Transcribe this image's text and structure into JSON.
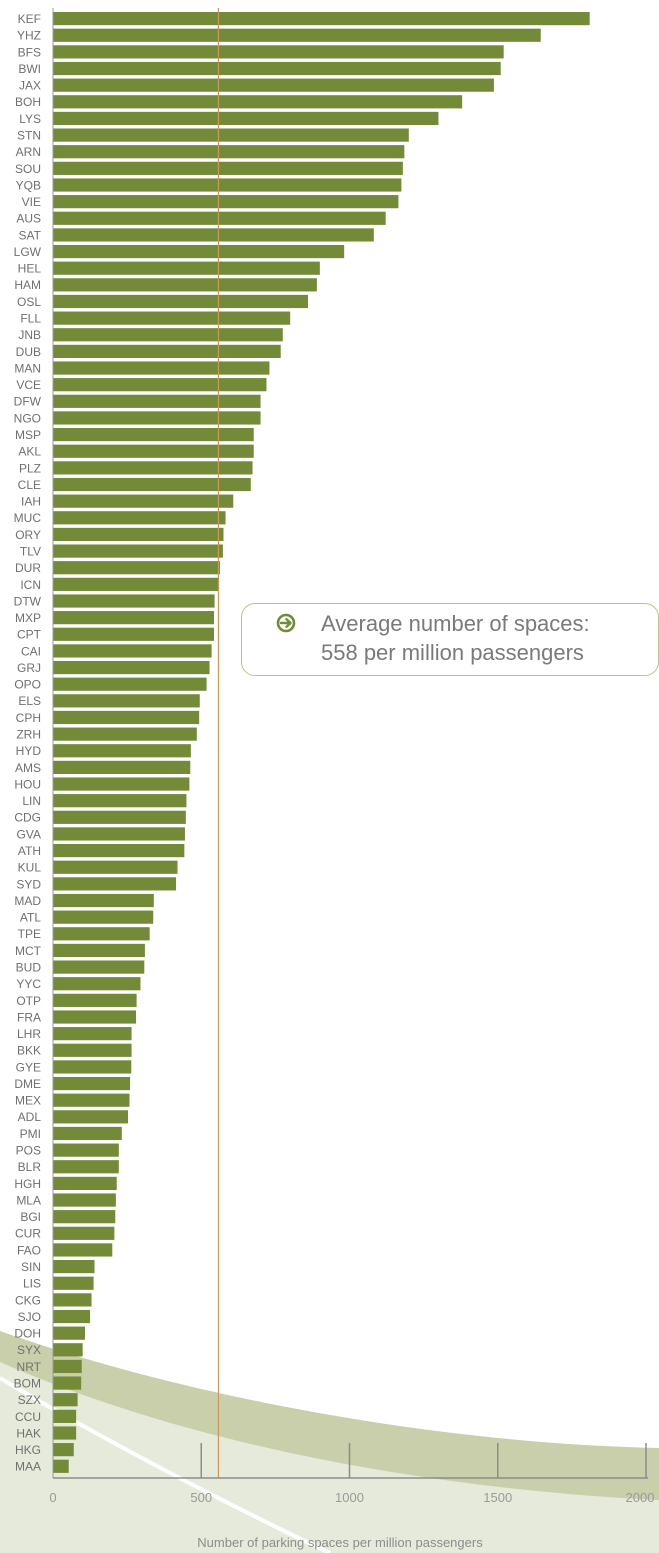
{
  "chart_data": {
    "type": "bar",
    "orientation": "horizontal",
    "xlabel": "Number of parking spaces per million passengers",
    "xlim": [
      0,
      2000
    ],
    "xticks": [
      "0",
      "500",
      "1000",
      "1500",
      "2000"
    ],
    "average": 558,
    "callout": {
      "line1": "Average number of spaces:",
      "line2": "558 per million passengers"
    },
    "colors": {
      "bar": "#738b38",
      "average_line": "#c89a5a",
      "callout_border": "#b8c48a"
    },
    "categories": [
      "KEF",
      "YHZ",
      "BFS",
      "BWI",
      "JAX",
      "BOH",
      "LYS",
      "STN",
      "ARN",
      "SOU",
      "YQB",
      "VIE",
      "AUS",
      "SAT",
      "LGW",
      "HEL",
      "HAM",
      "OSL",
      "FLL",
      "JNB",
      "DUB",
      "MAN",
      "VCE",
      "DFW",
      "NGO",
      "MSP",
      "AKL",
      "PLZ",
      "CLE",
      "IAH",
      "MUC",
      "ORY",
      "TLV",
      "DUR",
      "ICN",
      "DTW",
      "MXP",
      "CPT",
      "CAI",
      "GRJ",
      "OPO",
      "ELS",
      "CPH",
      "ZRH",
      "HYD",
      "AMS",
      "HOU",
      "LIN",
      "CDG",
      "GVA",
      "ATH",
      "KUL",
      "SYD",
      "MAD",
      "ATL",
      "TPE",
      "MCT",
      "BUD",
      "YYC",
      "OTP",
      "FRA",
      "LHR",
      "BKK",
      "GYE",
      "DME",
      "MEX",
      "ADL",
      "PMI",
      "POS",
      "BLR",
      "HGH",
      "MLA",
      "BGI",
      "CUR",
      "FAO",
      "SIN",
      "LIS",
      "CKG",
      "SJO",
      "DOH",
      "SYX",
      "NRT",
      "BOM",
      "SZX",
      "CCU",
      "HAK",
      "HKG",
      "MAA"
    ],
    "values": [
      1810,
      1645,
      1520,
      1510,
      1487,
      1380,
      1300,
      1200,
      1185,
      1180,
      1175,
      1165,
      1122,
      1082,
      982,
      900,
      890,
      860,
      800,
      775,
      768,
      730,
      720,
      700,
      700,
      677,
      677,
      673,
      667,
      608,
      582,
      575,
      573,
      563,
      560,
      545,
      543,
      543,
      535,
      528,
      518,
      495,
      493,
      485,
      465,
      463,
      460,
      450,
      448,
      445,
      443,
      420,
      415,
      340,
      338,
      326,
      310,
      308,
      295,
      282,
      280,
      265,
      265,
      264,
      260,
      258,
      253,
      232,
      222,
      222,
      215,
      212,
      210,
      207,
      200,
      140,
      137,
      130,
      125,
      108,
      100,
      97,
      95,
      83,
      78,
      78,
      70,
      53
    ]
  }
}
